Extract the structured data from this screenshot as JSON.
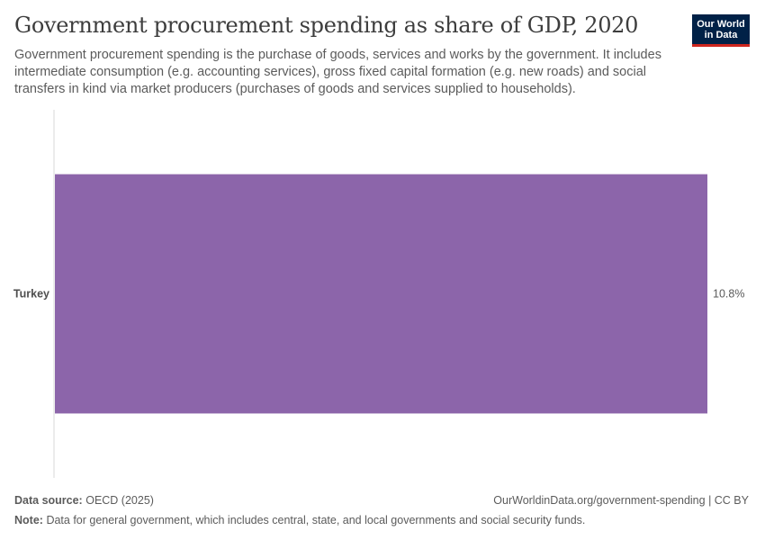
{
  "header": {
    "title": "Government procurement spending as share of GDP, 2020",
    "subtitle": "Government procurement spending is the purchase of goods, services and works by the government. It includes intermediate consumption (e.g. accounting services), gross fixed capital formation (e.g. new roads) and social transfers in kind via market producers (purchases of goods and services supplied to households).",
    "logo_line1": "Our World",
    "logo_line2": "in Data"
  },
  "chart_data": {
    "type": "bar",
    "orientation": "horizontal",
    "categories": [
      "Turkey"
    ],
    "values": [
      10.8
    ],
    "value_labels": [
      "10.8%"
    ],
    "bar_color": "#8c65aa",
    "grid": false
  },
  "footer": {
    "source_label": "Data source:",
    "source_text": "OECD (2025)",
    "url_text": "OurWorldinData.org/government-spending | CC BY",
    "note_label": "Note:",
    "note_text": "Data for general government, which includes central, state, and local governments and social security funds."
  }
}
